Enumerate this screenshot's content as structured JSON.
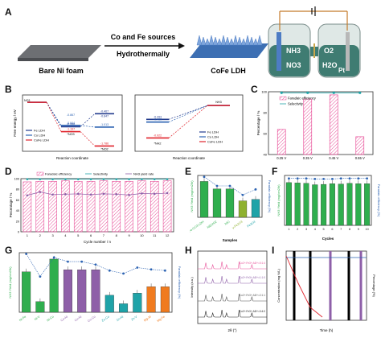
{
  "panel_letters": [
    "A",
    "B",
    "C",
    "D",
    "E",
    "F",
    "G",
    "H",
    "I"
  ],
  "panel_a": {
    "labels": {
      "bare": "Bare Ni foam",
      "arrow_top": "Co and Fe sources",
      "arrow_bottom": "Hydrothermally",
      "product": "CoFe LDH",
      "nh3": "NH3",
      "no3": "NO3",
      "o2": "O2",
      "h2o": "H2O",
      "pt": "Pt"
    }
  },
  "colors": {
    "pink": "#e8529a",
    "teal": "#1fa3a8",
    "blue": "#2e64b3",
    "red": "#e0232b",
    "purple": "#8e5fa8",
    "green": "#2fae4e",
    "olive": "#8fb130",
    "orange": "#f07b1f",
    "navy": "#233b8e"
  },
  "chart_data": [
    {
      "panel": "B-left",
      "type": "line",
      "xlabel": "Reaction coordinate",
      "ylabel": "Free energy / eV",
      "legend": [
        "Fe LDH",
        "Co LDH",
        "CoFe LDH"
      ],
      "start_label": "NO3",
      "point_labels": [
        "*NO3",
        "*NO2"
      ],
      "series": [
        {
          "name": "Fe LDH",
          "values": [
            0,
            -0.998,
            -0.467
          ]
        },
        {
          "name": "Co LDH",
          "values": [
            0,
            -0.944,
            -1.013
          ]
        },
        {
          "name": "CoFe LDH",
          "values": [
            0,
            -1.197,
            -1.786
          ]
        }
      ],
      "extra_labels": [
        "-0.867",
        "-0.847"
      ]
    },
    {
      "panel": "B-right",
      "type": "line",
      "xlabel": "Reaction coordinate",
      "legend": [
        "Fe LDH",
        "Co LDH",
        "CoFe LDH"
      ],
      "start_label": "*NH2",
      "end_label": "NH3",
      "series": [
        {
          "name": "Fe LDH",
          "values": [
            -0.393,
            0
          ]
        },
        {
          "name": "Co LDH",
          "values": [
            -0.469,
            0
          ]
        },
        {
          "name": "CoFe LDH",
          "values": [
            -0.922,
            0
          ]
        }
      ]
    },
    {
      "panel": "C",
      "type": "bar",
      "ylabel": "Percentage / %",
      "legend": [
        "Faradaic efficiency",
        "Selectivity"
      ],
      "categories": [
        "0.25 V",
        "0.35 V",
        "0.45 V",
        "0.55 V"
      ],
      "series": [
        {
          "name": "Faradaic efficiency",
          "values": [
            64,
            93,
            97,
            57
          ]
        },
        {
          "name": "Selectivity",
          "values": [
            99,
            99,
            99,
            99
          ]
        }
      ],
      "ylim": [
        40,
        100
      ]
    },
    {
      "panel": "D",
      "type": "bar",
      "xlabel": "Cycle number / n",
      "ylabel": "Percentage / %",
      "legend": [
        "Faradaic efficiency",
        "Selectivity",
        "NH3 yield rate"
      ],
      "categories": [
        "1",
        "2",
        "3",
        "4",
        "5",
        "6",
        "7",
        "8",
        "9",
        "10",
        "11",
        "12"
      ],
      "series": [
        {
          "name": "Faradaic efficiency",
          "values": [
            94,
            95,
            95,
            96,
            95,
            95,
            96,
            95,
            95,
            96,
            95,
            96
          ]
        },
        {
          "name": "Selectivity",
          "values": [
            99,
            99,
            99,
            99,
            99,
            99,
            99,
            99,
            99,
            99,
            99,
            99
          ]
        },
        {
          "name": "NH3 yield rate",
          "values": [
            0.96,
            1.05,
            0.98,
            0.99,
            1.0,
            0.98,
            1.0,
            0.99,
            0.97,
            1.01,
            1.0,
            1.02
          ]
        }
      ]
    },
    {
      "panel": "E",
      "type": "bar",
      "xlabel": "Samples",
      "ylabel": "NH3 Yield (mg/cm2/h)",
      "ylabel2": "Faradaic efficiency (%)",
      "categories": [
        "NiFe-CO3 LDH",
        "Ni(OH)2",
        "NiO",
        "γ-Fe2O3",
        "Fe3O4"
      ],
      "series": [
        {
          "name": "Yield",
          "values": [
            1.2,
            0.95,
            0.95,
            0.55,
            0.6
          ]
        },
        {
          "name": "Faradaic efficiency",
          "values": [
            98,
            85,
            85,
            72,
            80
          ]
        }
      ]
    },
    {
      "panel": "F",
      "type": "bar",
      "xlabel": "Cycles",
      "ylabel": "NH3 Yield (mg/cm2/h)",
      "ylabel2": "Faradaic efficiency (%)",
      "categories": [
        "1",
        "2",
        "3",
        "4",
        "5",
        "6",
        "7",
        "8",
        "9",
        "10"
      ],
      "series": [
        {
          "name": "Yield",
          "values": [
            1.2,
            1.19,
            1.18,
            1.14,
            1.15,
            1.17,
            1.16,
            1.18,
            1.17,
            1.17
          ]
        },
        {
          "name": "Faradaic efficiency",
          "values": [
            94,
            94,
            94,
            93,
            93,
            93,
            94,
            94,
            94,
            94
          ]
        }
      ]
    },
    {
      "panel": "G",
      "type": "bar",
      "ylabel": "NH3 Yield (mg/cm2/h)",
      "ylabel2": "Faradaic efficiency (%)",
      "categories": [
        "Ni-Fe",
        "Ni-V",
        "Ni-Co",
        "Co-Ni",
        "Cu-Ni",
        "Cu-Co",
        "Zn-Co",
        "Zn-Ni",
        "Zn-V",
        "Mg-Al",
        "Mg-Fe"
      ],
      "series": [
        {
          "name": "Yield",
          "values": [
            0.95,
            0.25,
            1.25,
            1.0,
            1.0,
            1.0,
            0.4,
            0.2,
            0.45,
            0.6,
            0.6
          ]
        },
        {
          "name": "Faradaic efficiency",
          "values": [
            98,
            60,
            92,
            85,
            85,
            80,
            70,
            65,
            75,
            72,
            70
          ]
        }
      ]
    },
    {
      "panel": "H",
      "type": "line",
      "xlabel": "2θ (°)",
      "ylabel": "Intensity (a.u.)",
      "legend": [
        "Co2+:Fe3+:Al3+=0:1:4",
        "Co2+:Fe3+:Al3+=1:1:0",
        "Co2+:Fe3+:Al3+=2:1:1",
        "Co2+:Fe3+:Al3+=0:4:0"
      ]
    },
    {
      "panel": "I",
      "type": "line",
      "xlabel": "Time (h)",
      "ylabel": "Concentration (mg N/L)",
      "ylabel2": "Percentage (%)"
    }
  ]
}
